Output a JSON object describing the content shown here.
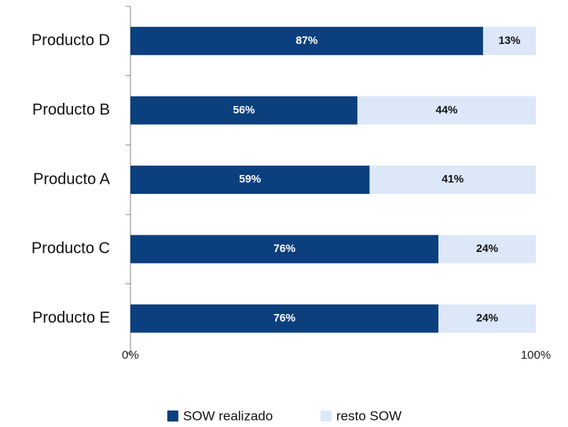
{
  "chart_data": {
    "type": "stacked-bar-horizontal",
    "categories": [
      "Producto D",
      "Producto B",
      "Producto A",
      "Producto C",
      "Producto E"
    ],
    "series": [
      {
        "name": "SOW realizado",
        "color": "#0b3f7d",
        "values": [
          87,
          56,
          59,
          76,
          76
        ],
        "value_labels": [
          "87%",
          "56%",
          "59%",
          "76%",
          "76%"
        ]
      },
      {
        "name": "resto SOW",
        "color": "#dce8f8",
        "values": [
          13,
          44,
          41,
          24,
          24
        ],
        "value_labels": [
          "13%",
          "44%",
          "41%",
          "24%",
          "24%"
        ]
      }
    ],
    "xlim": [
      0,
      100
    ],
    "xticks": [
      {
        "value": 0,
        "label": "0%"
      },
      {
        "value": 100,
        "label": "100%"
      }
    ],
    "legend": "bottom"
  }
}
